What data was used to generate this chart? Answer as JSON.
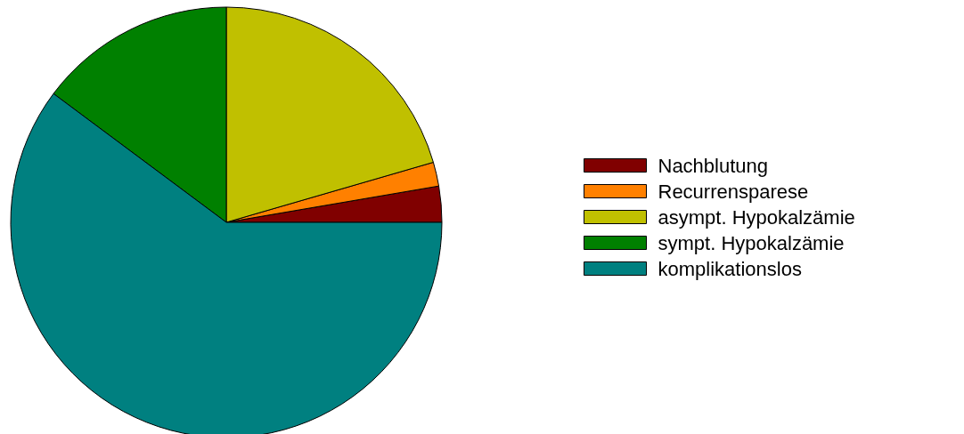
{
  "chart_data": {
    "type": "pie",
    "categories": [
      "Nachblutung",
      "Recurrensparese",
      "asympt. Hypokalzämie",
      "sympt. Hypokalzämie",
      "komplikationslos"
    ],
    "values": [
      2.7,
      1.8,
      20.5,
      14.8,
      60.2
    ],
    "colors": [
      "#800000",
      "#ff8000",
      "#c0c000",
      "#008000",
      "#008080"
    ],
    "legend": "right"
  }
}
